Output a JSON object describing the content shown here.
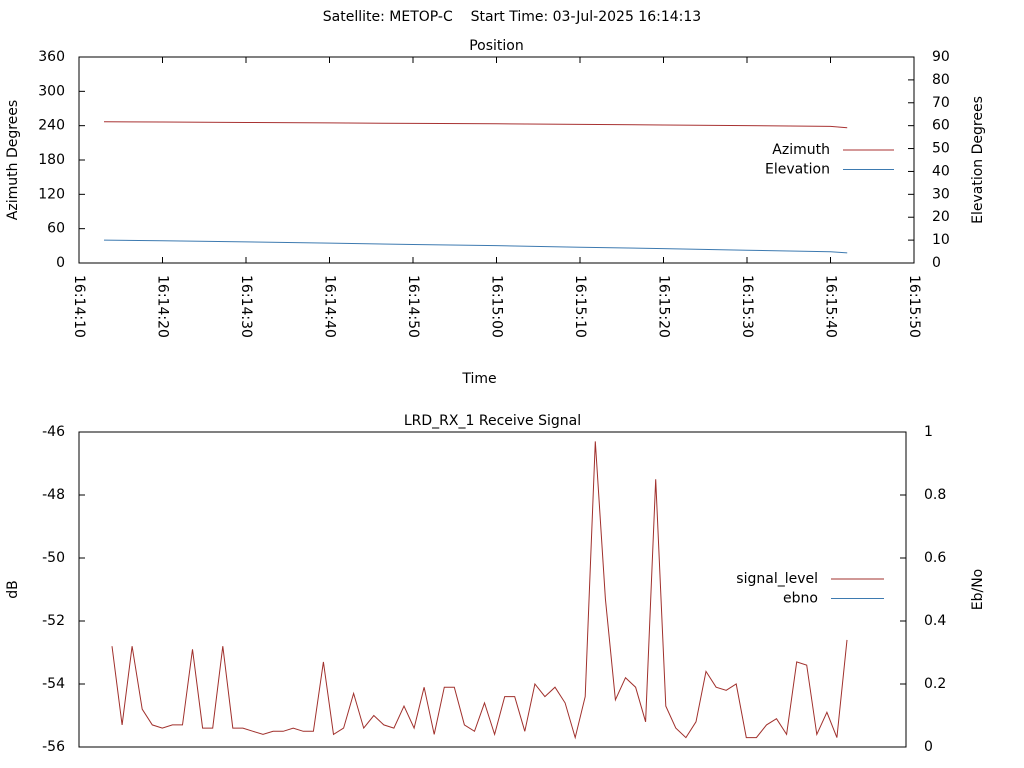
{
  "title": "Satellite: METOP-C    Start Time: 03-Jul-2025 16:14:13",
  "chart_data": [
    {
      "type": "line",
      "title": "Position",
      "x_label": "Time",
      "y_label": "Azimuth Degrees",
      "y2_label": "Elevation Degrees",
      "x": [
        "16:14:13",
        "16:14:20",
        "16:14:30",
        "16:14:40",
        "16:14:50",
        "16:15:00",
        "16:15:10",
        "16:15:20",
        "16:15:30",
        "16:15:40",
        "16:15:42"
      ],
      "xlim": [
        "16:14:10",
        "16:15:50"
      ],
      "xticks": [
        "16:14:10",
        "16:14:20",
        "16:14:30",
        "16:14:40",
        "16:14:50",
        "16:15:00",
        "16:15:10",
        "16:15:20",
        "16:15:30",
        "16:15:40",
        "16:15:50"
      ],
      "ylim": [
        0,
        360
      ],
      "yticks": [
        0,
        60,
        120,
        180,
        240,
        300,
        360
      ],
      "y2lim": [
        0,
        90
      ],
      "y2ticks": [
        0,
        10,
        20,
        30,
        40,
        50,
        60,
        70,
        80,
        90
      ],
      "grid": false,
      "legend": "right",
      "series": [
        {
          "name": "Azimuth",
          "color": "#a83232",
          "values": [
            247,
            246.4,
            245.6,
            244.8,
            244,
            243.2,
            242.2,
            241.2,
            240.2,
            238.8,
            236.5
          ]
        },
        {
          "name": "Elevation",
          "color": "#3d7ab0",
          "axis": "y2",
          "values": [
            10,
            9.7,
            9.2,
            8.7,
            8.1,
            7.6,
            6.9,
            6.3,
            5.6,
            4.9,
            4.4
          ]
        }
      ]
    },
    {
      "type": "line",
      "title": "LRD_RX_1 Receive Signal",
      "y_label": "dB",
      "y2_label": "Eb/No",
      "categories": [
        null,
        null,
        null,
        null,
        null,
        null,
        null,
        null,
        null,
        null,
        null,
        null,
        null,
        null,
        null,
        null,
        null,
        null,
        null,
        null,
        null,
        null,
        null,
        null,
        null,
        null,
        null,
        null,
        null,
        null,
        null,
        null,
        null,
        null,
        null,
        null,
        null,
        null,
        null,
        null,
        null,
        null,
        null,
        null,
        null,
        null,
        null,
        null,
        null,
        null,
        null,
        null,
        null,
        null,
        null,
        null,
        null,
        null,
        null,
        null,
        null,
        null,
        null,
        null,
        null,
        null,
        null,
        null,
        null,
        null,
        null,
        null,
        null,
        null
      ],
      "ylim": [
        -56,
        -46
      ],
      "yticks": [
        -56,
        -54,
        -52,
        -50,
        -48,
        -46
      ],
      "y2lim": [
        0,
        1
      ],
      "y2ticks": [
        0,
        0.2,
        0.4,
        0.6,
        0.8,
        1
      ],
      "grid": false,
      "legend": "right",
      "series": [
        {
          "name": "signal_level",
          "color": "#a0302c",
          "values": [
            -52.8,
            -55.3,
            -52.8,
            -54.8,
            -55.3,
            -55.4,
            -55.3,
            -55.3,
            -52.9,
            -55.4,
            -55.4,
            -52.8,
            -55.4,
            -55.4,
            -55.5,
            -55.6,
            -55.5,
            -55.5,
            -55.4,
            -55.5,
            -55.5,
            -53.3,
            -55.6,
            -55.4,
            -54.3,
            -55.4,
            -55.0,
            -55.3,
            -55.4,
            -54.7,
            -55.4,
            -54.1,
            -55.6,
            -54.1,
            -54.1,
            -55.3,
            -55.5,
            -54.6,
            -55.6,
            -54.4,
            -54.4,
            -55.5,
            -54.0,
            -54.4,
            -54.1,
            -54.6,
            -55.7,
            -54.4,
            -46.3,
            -51.3,
            -54.5,
            -53.8,
            -54.1,
            -55.2,
            -47.5,
            -54.7,
            -55.4,
            -55.7,
            -55.2,
            -53.6,
            -54.1,
            -54.2,
            -54.0,
            -55.7,
            -55.7,
            -55.3,
            -55.1,
            -55.6,
            -53.3,
            -53.4,
            -55.6,
            -54.9,
            -55.7,
            -52.6
          ]
        },
        {
          "name": "ebno",
          "color": "#3d7ab0",
          "axis": "y2"
        }
      ]
    }
  ]
}
